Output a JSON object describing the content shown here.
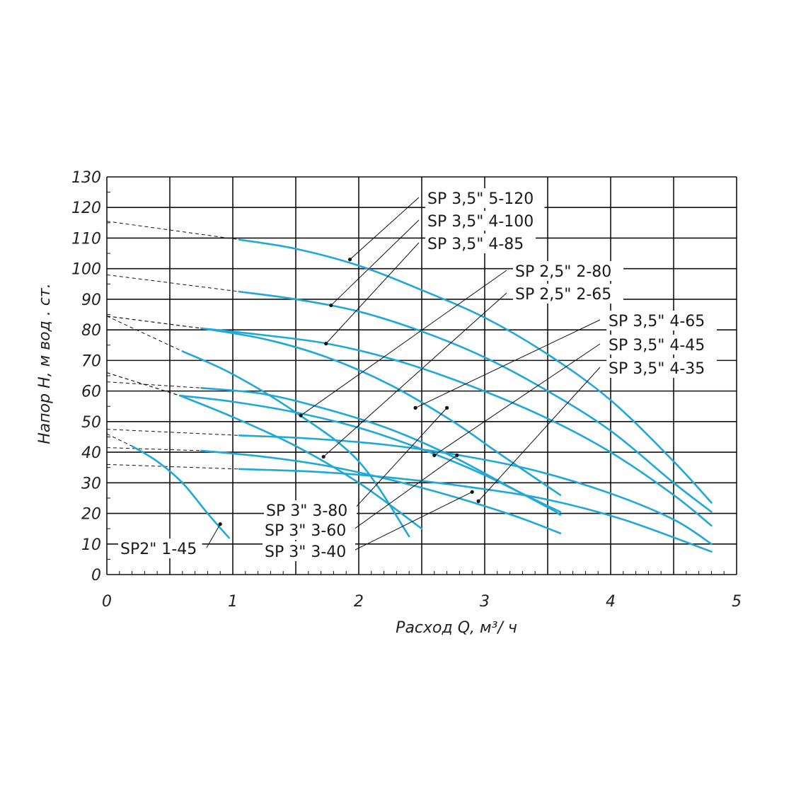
{
  "chart_data": {
    "type": "line",
    "title": "",
    "xlabel": "Расход  Q,  м³/ ч",
    "ylabel": "Напор  Н,  м вод . ст.",
    "xlim": [
      0,
      5
    ],
    "ylim": [
      0,
      130
    ],
    "x_ticks": [
      "0",
      "1",
      "2",
      "3",
      "4",
      "5"
    ],
    "x_tick_values": [
      0,
      1,
      2,
      3,
      4,
      5
    ],
    "y_ticks": [
      "0",
      "10",
      "20",
      "30",
      "40",
      "50",
      "60",
      "70",
      "80",
      "90",
      "100",
      "110",
      "120",
      "130"
    ],
    "y_tick_values": [
      0,
      10,
      20,
      30,
      40,
      50,
      60,
      70,
      80,
      90,
      100,
      110,
      120,
      130
    ],
    "grid": true,
    "series": [
      {
        "name": "SP 3,5\" 5-120",
        "dashed": [
          [
            0,
            115.5
          ],
          [
            1.05,
            109.5
          ]
        ],
        "curve": [
          [
            1.05,
            109.5
          ],
          [
            1.5,
            106.5
          ],
          [
            2.0,
            101
          ],
          [
            2.5,
            93
          ],
          [
            3.0,
            84
          ],
          [
            3.5,
            72
          ],
          [
            4.0,
            57
          ],
          [
            4.5,
            37
          ],
          [
            4.8,
            23.5
          ]
        ],
        "label_point": [
          1.93,
          103
        ]
      },
      {
        "name": "SP 3,5\" 4-100",
        "dashed": [
          [
            0,
            98
          ],
          [
            1.05,
            92.5
          ]
        ],
        "curve": [
          [
            1.05,
            92.5
          ],
          [
            1.5,
            90
          ],
          [
            2.0,
            86
          ],
          [
            2.5,
            79.5
          ],
          [
            3.0,
            71
          ],
          [
            3.5,
            60
          ],
          [
            4.0,
            47
          ],
          [
            4.5,
            30
          ],
          [
            4.8,
            20.5
          ]
        ],
        "label_point": [
          1.78,
          88
        ]
      },
      {
        "name": "SP 3,5\" 4-85",
        "dashed": [
          [
            0,
            84.5
          ],
          [
            0.75,
            80.5
          ]
        ],
        "curve": [
          [
            0.75,
            80.5
          ],
          [
            1.2,
            78.5
          ],
          [
            1.75,
            75.5
          ],
          [
            2.3,
            70
          ],
          [
            2.9,
            61.5
          ],
          [
            3.5,
            51
          ],
          [
            4.0,
            40
          ],
          [
            4.5,
            26
          ],
          [
            4.8,
            16
          ]
        ],
        "label_point": [
          1.74,
          75.5
        ]
      },
      {
        "name": "SP 2,5\" 2-80",
        "dashed": [
          [
            0,
            84.5
          ],
          [
            0.6,
            73
          ]
        ],
        "curve": [
          [
            0.6,
            73
          ],
          [
            1.0,
            65.5
          ],
          [
            1.5,
            53
          ],
          [
            2.0,
            37
          ],
          [
            2.4,
            12.5
          ]
        ],
        "label_point": [
          1.54,
          52
        ]
      },
      {
        "name": "SP 2,5\" 2-65",
        "dashed": [
          [
            0,
            66
          ],
          [
            0.58,
            58.5
          ]
        ],
        "curve": [
          [
            0.58,
            58.5
          ],
          [
            1.0,
            51.5
          ],
          [
            1.5,
            42
          ],
          [
            2.0,
            30
          ],
          [
            2.5,
            15
          ]
        ],
        "label_point": [
          1.72,
          38.5
        ]
      },
      {
        "name": "SP 3,5\" 4-65",
        "dashed": [
          [
            0,
            84.5
          ],
          [
            0.75,
            80.5
          ]
        ],
        "curve": [
          [
            0.75,
            80.5
          ],
          [
            1.25,
            77
          ],
          [
            1.75,
            71
          ],
          [
            2.25,
            62
          ],
          [
            2.75,
            50
          ],
          [
            3.1,
            40
          ],
          [
            3.6,
            26
          ]
        ],
        "label_point": [
          2.45,
          54.5
        ]
      },
      {
        "name": "SP 3,5\" 4-45",
        "dashed": [
          [
            0,
            47.5
          ],
          [
            1.05,
            45.5
          ]
        ],
        "curve": [
          [
            1.05,
            45.5
          ],
          [
            1.6,
            44.5
          ],
          [
            2.2,
            42.5
          ],
          [
            2.8,
            39
          ],
          [
            3.4,
            34
          ],
          [
            4.0,
            26.5
          ],
          [
            4.5,
            18
          ],
          [
            4.8,
            10
          ]
        ],
        "label_point": [
          2.6,
          39
        ]
      },
      {
        "name": "SP 3,5\" 4-35",
        "dashed": [
          [
            0,
            36
          ],
          [
            1.05,
            34.5
          ]
        ],
        "curve": [
          [
            1.05,
            34.5
          ],
          [
            1.7,
            33.5
          ],
          [
            2.3,
            31.5
          ],
          [
            2.9,
            28.5
          ],
          [
            3.5,
            24.5
          ],
          [
            4.1,
            18
          ],
          [
            4.8,
            7.5
          ]
        ],
        "label_point": [
          2.95,
          24
        ]
      },
      {
        "name": "SP 3\" 3-80",
        "dashed": [
          [
            0,
            63
          ],
          [
            0.75,
            61
          ]
        ],
        "curve": [
          [
            0.75,
            61
          ],
          [
            1.25,
            59
          ],
          [
            1.75,
            54
          ],
          [
            2.25,
            47.5
          ],
          [
            2.75,
            38.5
          ],
          [
            3.25,
            27.5
          ],
          [
            3.6,
            20.5
          ]
        ],
        "label_point": [
          2.7,
          54.5
        ]
      },
      {
        "name": "SP 3\" 3-60",
        "dashed": [
          [
            0,
            66
          ],
          [
            0.58,
            58.5
          ]
        ],
        "curve": [
          [
            0.58,
            58.5
          ],
          [
            1.0,
            56.5
          ],
          [
            1.5,
            53
          ],
          [
            2.0,
            48
          ],
          [
            2.5,
            41
          ],
          [
            3.0,
            32.5
          ],
          [
            3.5,
            22
          ],
          [
            3.6,
            19.5
          ]
        ],
        "label_point": [
          2.78,
          39
        ]
      },
      {
        "name": "SP 3\" 3-40",
        "dashed": [
          [
            0,
            41.5
          ],
          [
            0.75,
            40.5
          ]
        ],
        "curve": [
          [
            0.75,
            40.5
          ],
          [
            1.25,
            38.5
          ],
          [
            1.75,
            35.5
          ],
          [
            2.25,
            31
          ],
          [
            2.75,
            25.5
          ],
          [
            3.25,
            19
          ],
          [
            3.6,
            13.5
          ]
        ],
        "label_point": [
          2.9,
          27
        ]
      },
      {
        "name": "SP2\" 1-45",
        "dashed": [
          [
            0,
            46
          ],
          [
            0.2,
            42
          ]
        ],
        "curve": [
          [
            0.2,
            42
          ],
          [
            0.4,
            37
          ],
          [
            0.6,
            30
          ],
          [
            0.8,
            20
          ],
          [
            0.97,
            12
          ]
        ],
        "label_point": [
          0.9,
          16.5
        ]
      }
    ],
    "annotations": {
      "top_labels": [
        "SP 3,5\" 5-120",
        "SP 3,5\" 4-100",
        "SP 3,5\" 4-85"
      ],
      "mid_labels": [
        "SP 2,5\" 2-80",
        "SP 2,5\" 2-65"
      ],
      "right_labels": [
        "SP 3,5\" 4-65",
        "SP 3,5\" 4-45",
        "SP 3,5\" 4-35"
      ],
      "bottom_labels": [
        "SP 3\" 3-80",
        "SP 3\" 3-60",
        "SP 3\" 3-40"
      ],
      "left_label": "SP2\" 1-45"
    },
    "colors": {
      "curve": "#1fa8d8",
      "grid": "#111111",
      "text": "#222222"
    }
  }
}
